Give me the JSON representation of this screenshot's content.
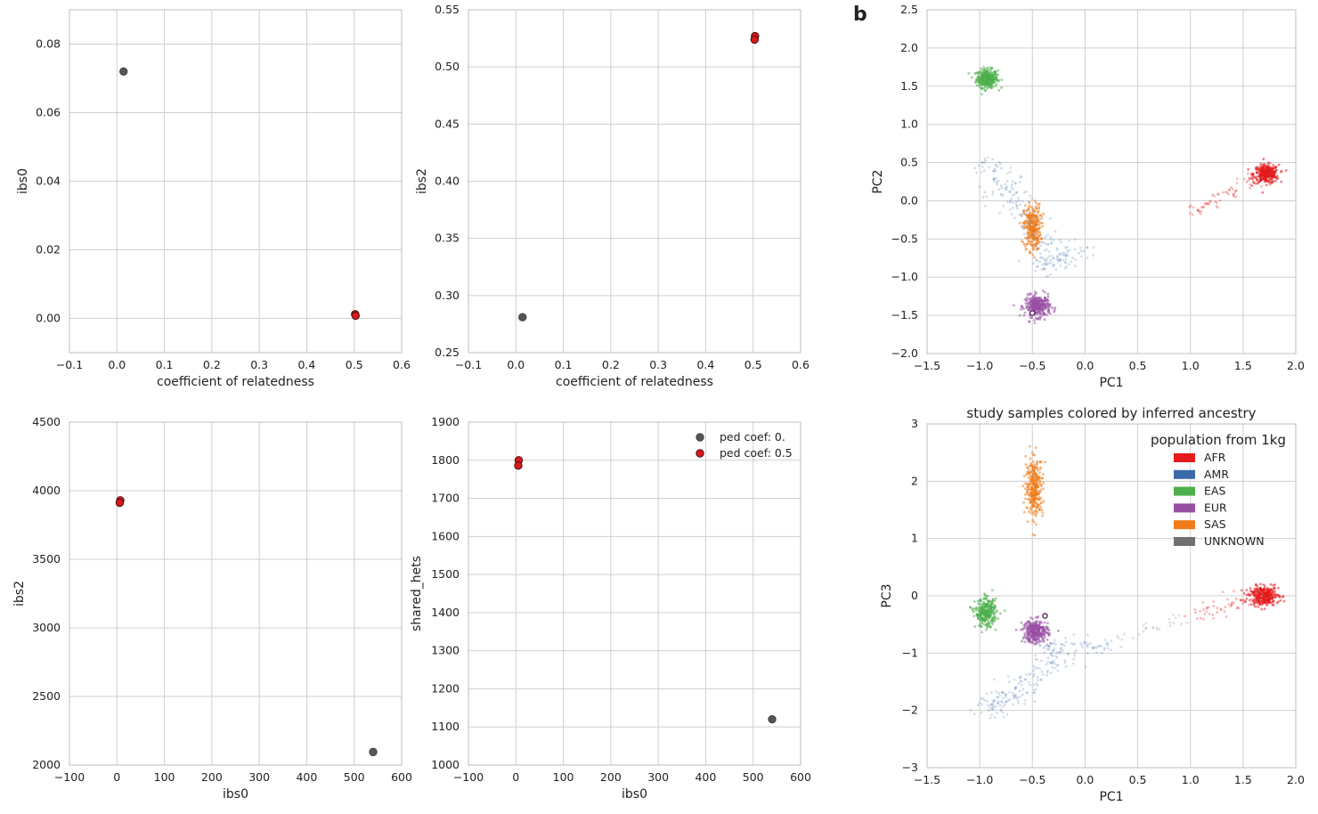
{
  "panel_letter": "b",
  "colors": {
    "ped0": "#555555",
    "ped05": "#d7191c",
    "AFR": "#e41a1c",
    "AMR": "#3b6aa8",
    "EAS": "#4daf4a",
    "EUR": "#984ea3",
    "SAS": "#f07c1c",
    "UNKNOWN": "#707070"
  },
  "chart_data": [
    {
      "id": "ibs0-vs-rel",
      "type": "scatter",
      "title": "",
      "xlabel": "coefficient of relatedness",
      "ylabel": "ibs0",
      "xlim": [
        -0.1,
        0.6
      ],
      "ylim": [
        -0.01,
        0.09
      ],
      "xticks": [
        -0.1,
        0.0,
        0.1,
        0.2,
        0.3,
        0.4,
        0.5,
        0.6
      ],
      "xtick_labels": [
        "−0.1",
        "0.0",
        "0.1",
        "0.2",
        "0.3",
        "0.4",
        "0.5",
        "0.6"
      ],
      "yticks": [
        0.0,
        0.02,
        0.04,
        0.06,
        0.08
      ],
      "ytick_labels": [
        "0.00",
        "0.02",
        "0.04",
        "0.06",
        "0.08"
      ],
      "series": [
        {
          "name": "ped coef: 0.",
          "color_key": "ped0",
          "points": [
            [
              0.014,
              0.072
            ]
          ]
        },
        {
          "name": "ped coef: 0.5",
          "color_key": "ped05",
          "points": [
            [
              0.502,
              0.0012
            ],
            [
              0.503,
              0.0008
            ]
          ]
        }
      ]
    },
    {
      "id": "ibs2-vs-rel",
      "type": "scatter",
      "title": "",
      "xlabel": "coefficient of relatedness",
      "ylabel": "ibs2",
      "xlim": [
        -0.1,
        0.6
      ],
      "ylim": [
        0.25,
        0.55
      ],
      "xticks": [
        -0.1,
        0.0,
        0.1,
        0.2,
        0.3,
        0.4,
        0.5,
        0.6
      ],
      "xtick_labels": [
        "−0.1",
        "0.0",
        "0.1",
        "0.2",
        "0.3",
        "0.4",
        "0.5",
        "0.6"
      ],
      "yticks": [
        0.25,
        0.3,
        0.35,
        0.4,
        0.45,
        0.5,
        0.55
      ],
      "ytick_labels": [
        "0.25",
        "0.30",
        "0.35",
        "0.40",
        "0.45",
        "0.50",
        "0.55"
      ],
      "series": [
        {
          "name": "ped coef: 0.",
          "color_key": "ped0",
          "points": [
            [
              0.014,
              0.281
            ]
          ]
        },
        {
          "name": "ped coef: 0.5",
          "color_key": "ped05",
          "points": [
            [
              0.504,
              0.527
            ],
            [
              0.503,
              0.524
            ]
          ]
        }
      ]
    },
    {
      "id": "ibs2-vs-ibs0",
      "type": "scatter",
      "title": "",
      "xlabel": "ibs0",
      "ylabel": "ibs2",
      "xlim": [
        -100,
        600
      ],
      "ylim": [
        2000,
        4500
      ],
      "xticks": [
        -100,
        0,
        100,
        200,
        300,
        400,
        500,
        600
      ],
      "xtick_labels": [
        "−100",
        "0",
        "100",
        "200",
        "300",
        "400",
        "500",
        "600"
      ],
      "yticks": [
        2000,
        2500,
        3000,
        3500,
        4000,
        4500
      ],
      "ytick_labels": [
        "2000",
        "2500",
        "3000",
        "3500",
        "4000",
        "4500"
      ],
      "series": [
        {
          "name": "ped coef: 0.",
          "color_key": "ped0",
          "points": [
            [
              540,
              2095
            ]
          ]
        },
        {
          "name": "ped coef: 0.5",
          "color_key": "ped05",
          "points": [
            [
              7,
              3930
            ],
            [
              6,
              3912
            ]
          ]
        }
      ]
    },
    {
      "id": "shared-hets-vs-ibs0",
      "type": "scatter",
      "title": "",
      "xlabel": "ibs0",
      "ylabel": "shared_hets",
      "xlim": [
        -100,
        600
      ],
      "ylim": [
        1000,
        1900
      ],
      "xticks": [
        -100,
        0,
        100,
        200,
        300,
        400,
        500,
        600
      ],
      "xtick_labels": [
        "−100",
        "0",
        "100",
        "200",
        "300",
        "400",
        "500",
        "600"
      ],
      "yticks": [
        1000,
        1100,
        1200,
        1300,
        1400,
        1500,
        1600,
        1700,
        1800,
        1900
      ],
      "ytick_labels": [
        "1000",
        "1100",
        "1200",
        "1300",
        "1400",
        "1500",
        "1600",
        "1700",
        "1800",
        "1900"
      ],
      "legend": {
        "position": "top-right",
        "entries": [
          "ped coef: 0.",
          "ped coef: 0.5"
        ]
      },
      "series": [
        {
          "name": "ped coef: 0.",
          "color_key": "ped0",
          "points": [
            [
              540,
              1120
            ]
          ]
        },
        {
          "name": "ped coef: 0.5",
          "color_key": "ped05",
          "points": [
            [
              6,
              1800
            ],
            [
              5,
              1786
            ]
          ]
        }
      ]
    },
    {
      "id": "pc2-vs-pc1",
      "type": "scatter",
      "title": "",
      "xlabel": "PC1",
      "ylabel": "PC2",
      "xlim": [
        -1.5,
        2.0
      ],
      "ylim": [
        -2.0,
        2.5
      ],
      "xticks": [
        -1.5,
        -1.0,
        -0.5,
        0.0,
        0.5,
        1.0,
        1.5,
        2.0
      ],
      "xtick_labels": [
        "−1.5",
        "−1.0",
        "−0.5",
        "0.0",
        "0.5",
        "1.0",
        "1.5",
        "2.0"
      ],
      "yticks": [
        -2.0,
        -1.5,
        -1.0,
        -0.5,
        0.0,
        0.5,
        1.0,
        1.5,
        2.0,
        2.5
      ],
      "ytick_labels": [
        "−2.0",
        "−1.5",
        "−1.0",
        "−0.5",
        "0.0",
        "0.5",
        "1.0",
        "1.5",
        "2.0",
        "2.5"
      ],
      "clusters": [
        {
          "name": "EAS",
          "color_key": "EAS",
          "center": [
            -0.93,
            1.6
          ],
          "spread": [
            0.05,
            0.06
          ],
          "n": 320
        },
        {
          "name": "AFR",
          "color_key": "AFR",
          "center": [
            1.72,
            0.35
          ],
          "spread": [
            0.06,
            0.06
          ],
          "n": 300
        },
        {
          "name": "AFR",
          "color_key": "AFR",
          "from": [
            1.0,
            -0.15
          ],
          "to": [
            1.6,
            0.3
          ],
          "jitter": 0.05,
          "n": 60
        },
        {
          "name": "SAS",
          "color_key": "SAS",
          "center": [
            -0.5,
            -0.35
          ],
          "spread": [
            0.04,
            0.15
          ],
          "n": 300
        },
        {
          "name": "EUR",
          "color_key": "EUR",
          "center": [
            -0.45,
            -1.38
          ],
          "spread": [
            0.06,
            0.07
          ],
          "n": 320
        },
        {
          "name": "AMR",
          "color_key": "AMR",
          "from": [
            -0.95,
            0.5
          ],
          "to": [
            -0.2,
            -0.9
          ],
          "jitter": 0.09,
          "n": 170
        },
        {
          "name": "AMR",
          "color_key": "AMR",
          "from": [
            -0.45,
            -0.9
          ],
          "to": [
            0.0,
            -0.6
          ],
          "jitter": 0.07,
          "n": 60
        }
      ],
      "highlight": [
        [
          -0.5,
          -1.47
        ]
      ]
    },
    {
      "id": "pc3-vs-pc1",
      "type": "scatter",
      "title": "study samples colored by inferred ancestry",
      "xlabel": "PC1",
      "ylabel": "PC3",
      "xlim": [
        -1.5,
        2.0
      ],
      "ylim": [
        -3,
        3
      ],
      "xticks": [
        -1.5,
        -1.0,
        -0.5,
        0.0,
        0.5,
        1.0,
        1.5,
        2.0
      ],
      "xtick_labels": [
        "−1.5",
        "−1.0",
        "−0.5",
        "0.0",
        "0.5",
        "1.0",
        "1.5",
        "2.0"
      ],
      "yticks": [
        -3,
        -2,
        -1,
        0,
        1,
        2,
        3
      ],
      "ytick_labels": [
        "−3",
        "−2",
        "−1",
        "0",
        "1",
        "2",
        "3"
      ],
      "legend": {
        "position": "top-right",
        "title": "population from 1kg",
        "entries": [
          "AFR",
          "AMR",
          "EAS",
          "EUR",
          "SAS",
          "UNKNOWN"
        ]
      },
      "clusters": [
        {
          "name": "SAS",
          "color_key": "SAS",
          "center": [
            -0.48,
            1.9
          ],
          "spread": [
            0.04,
            0.25
          ],
          "n": 320
        },
        {
          "name": "EAS",
          "color_key": "EAS",
          "center": [
            -0.94,
            -0.3
          ],
          "spread": [
            0.05,
            0.12
          ],
          "n": 300
        },
        {
          "name": "EUR",
          "color_key": "EUR",
          "center": [
            -0.47,
            -0.62
          ],
          "spread": [
            0.06,
            0.1
          ],
          "n": 300
        },
        {
          "name": "AFR",
          "color_key": "AFR",
          "center": [
            1.7,
            0.0
          ],
          "spread": [
            0.07,
            0.08
          ],
          "n": 300
        },
        {
          "name": "AFR",
          "color_key": "AFR",
          "from": [
            1.05,
            -0.35
          ],
          "to": [
            1.6,
            0.0
          ],
          "jitter": 0.07,
          "n": 50
        },
        {
          "name": "AMR",
          "color_key": "AMR",
          "from": [
            -0.95,
            -2.05
          ],
          "to": [
            -0.2,
            -1.0
          ],
          "jitter": 0.09,
          "n": 170
        },
        {
          "name": "AMR",
          "color_key": "AMR",
          "from": [
            -0.45,
            -0.85
          ],
          "to": [
            0.25,
            -0.9
          ],
          "jitter": 0.07,
          "n": 60
        },
        {
          "name": "UNKNOWN",
          "color_key": "UNKNOWN",
          "from": [
            0.3,
            -0.75
          ],
          "to": [
            0.9,
            -0.4
          ],
          "jitter": 0.06,
          "n": 25
        }
      ],
      "highlight": [
        [
          -0.38,
          -0.35
        ]
      ]
    }
  ]
}
